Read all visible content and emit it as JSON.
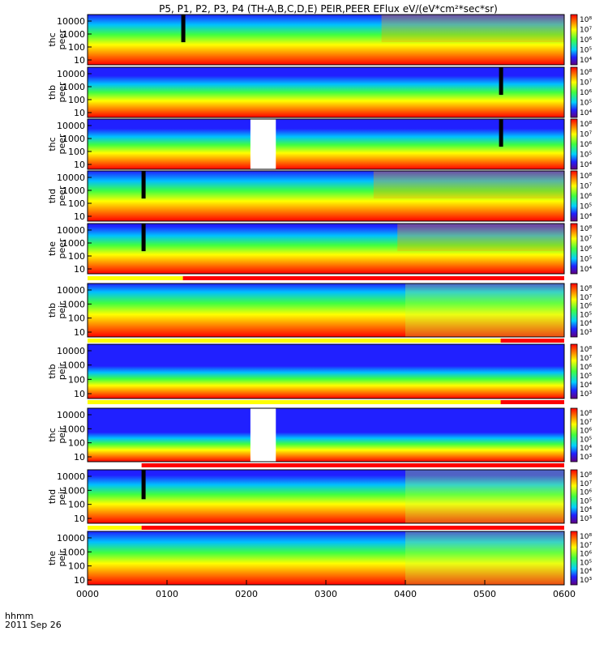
{
  "chart_data": {
    "type": "heatmap",
    "title": "P5, P1, P2, P3, P4 (TH-A,B,C,D,E) PEIR,PEER EFlux eV/(eV*cm²*sec*sr)",
    "x_axis": {
      "label_line1": "hhmm",
      "label_line2": "2011 Sep 26",
      "ticks": [
        "0000",
        "0100",
        "0200",
        "0300",
        "0400",
        "0500",
        "0600"
      ],
      "range": [
        0,
        6
      ]
    },
    "y_ticks": [
      "10",
      "100",
      "1000",
      "10000"
    ],
    "color_scale": "rainbow (blue → red)",
    "panels": [
      {
        "probe": "thc",
        "species": "peer",
        "ylabel": [
          "thc",
          "peer"
        ],
        "cbar": [
          "10⁸",
          "10⁷",
          "10⁶",
          "10⁵",
          "10⁴"
        ],
        "profile": [
          {
            "t": 0,
            "r": 0.55
          },
          {
            "t": 3.5,
            "r": 0.55
          },
          {
            "t": 3.7,
            "r": 0.8
          },
          {
            "t": 6,
            "r": 0.85
          }
        ],
        "spike": [
          1.2
        ],
        "gap": [],
        "bar": null
      },
      {
        "probe": "thb",
        "species": "peer",
        "ylabel": [
          "thb",
          "peer"
        ],
        "cbar": [
          "10⁸",
          "10⁷",
          "10⁶",
          "10⁵",
          "10⁴"
        ],
        "profile": [
          {
            "t": 0,
            "r": 0.38
          },
          {
            "t": 6,
            "r": 0.38
          }
        ],
        "spike": [
          5.2
        ],
        "gap": [],
        "bar": null
      },
      {
        "probe": "thc",
        "species": "peer",
        "ylabel": [
          "thc",
          "peer"
        ],
        "cbar": [
          "10⁸",
          "10⁷",
          "10⁶",
          "10⁵",
          "10⁴"
        ],
        "profile": [
          {
            "t": 0,
            "r": 0.36
          },
          {
            "t": 6,
            "r": 0.36
          }
        ],
        "spike": [
          5.2
        ],
        "gap": [
          [
            2.05,
            2.37
          ]
        ],
        "bar": null
      },
      {
        "probe": "thd",
        "species": "peer",
        "ylabel": [
          "thd",
          "peer"
        ],
        "cbar": [
          "10⁸",
          "10⁷",
          "10⁶",
          "10⁵",
          "10⁴"
        ],
        "profile": [
          {
            "t": 0,
            "r": 0.55
          },
          {
            "t": 3.5,
            "r": 0.55
          },
          {
            "t": 3.6,
            "r": 0.8
          },
          {
            "t": 6,
            "r": 0.85
          }
        ],
        "spike": [
          0.7
        ],
        "gap": [],
        "bar": null
      },
      {
        "probe": "the",
        "species": "peer",
        "ylabel": [
          "the",
          "peer"
        ],
        "cbar": [
          "10⁸",
          "10⁷",
          "10⁶",
          "10⁵",
          "10⁴"
        ],
        "profile": [
          {
            "t": 0,
            "r": 0.5
          },
          {
            "t": 3.6,
            "r": 0.55
          },
          {
            "t": 3.9,
            "r": 0.8
          },
          {
            "t": 6,
            "r": 0.85
          }
        ],
        "spike": [
          0.7
        ],
        "gap": [],
        "bar": null
      },
      {
        "probe": "thb",
        "species": "peir",
        "ylabel": [
          "thb",
          "peir"
        ],
        "cbar": [
          "10⁸",
          "10⁷",
          "10⁶",
          "10⁵",
          "10⁴",
          "10³"
        ],
        "profile": [
          {
            "t": 0,
            "r": 0.6
          },
          {
            "t": 3.5,
            "r": 0.55
          },
          {
            "t": 4,
            "r": 0.35
          },
          {
            "t": 6,
            "r": 0.3
          }
        ],
        "spike": [],
        "gap": [],
        "bar": {
          "split": 1.2,
          "left": "#ffff00",
          "right": "#ff0000"
        }
      },
      {
        "probe": "thb",
        "species": "peir",
        "ylabel": [
          "thb",
          "peir"
        ],
        "cbar": [
          "10⁸",
          "10⁷",
          "10⁶",
          "10⁵",
          "10⁴",
          "10³"
        ],
        "profile": [
          {
            "t": 0,
            "r": 0.15
          },
          {
            "t": 6,
            "r": 0.15
          }
        ],
        "spike": [],
        "gap": [],
        "bar": {
          "split": 5.2,
          "left": "#ffff00",
          "right": "#ff0000"
        }
      },
      {
        "probe": "thc",
        "species": "peir",
        "ylabel": [
          "thc",
          "peir"
        ],
        "cbar": [
          "10⁸",
          "10⁷",
          "10⁶",
          "10⁵",
          "10⁴",
          "10³"
        ],
        "profile": [
          {
            "t": 0,
            "r": 0.1
          },
          {
            "t": 6,
            "r": 0.1
          }
        ],
        "spike": [],
        "gap": [
          [
            2.05,
            2.37
          ]
        ],
        "bar": {
          "split": 5.2,
          "left": "#ffff00",
          "right": "#ff0000"
        }
      },
      {
        "probe": "thd",
        "species": "peir",
        "ylabel": [
          "thd",
          "peir"
        ],
        "cbar": [
          "10⁸",
          "10⁷",
          "10⁶",
          "10⁵",
          "10⁴",
          "10³"
        ],
        "profile": [
          {
            "t": 0,
            "r": 0.45
          },
          {
            "t": 3.5,
            "r": 0.45
          },
          {
            "t": 4,
            "r": 0.3
          },
          {
            "t": 6,
            "r": 0.28
          }
        ],
        "spike": [
          0.7
        ],
        "gap": [],
        "bar": {
          "split": 0.68,
          "left": "#ffffff",
          "right": "#ff0000"
        }
      },
      {
        "probe": "the",
        "species": "peir",
        "ylabel": [
          "the",
          "peir"
        ],
        "cbar": [
          "10⁸",
          "10⁷",
          "10⁶",
          "10⁵",
          "10⁴",
          "10³"
        ],
        "profile": [
          {
            "t": 0,
            "r": 0.55
          },
          {
            "t": 3.5,
            "r": 0.55
          },
          {
            "t": 4,
            "r": 0.35
          },
          {
            "t": 6,
            "r": 0.3
          }
        ],
        "spike": [],
        "gap": [],
        "bar": {
          "split": 0.68,
          "left": "#ffff00",
          "right": "#ff0000"
        }
      }
    ]
  }
}
